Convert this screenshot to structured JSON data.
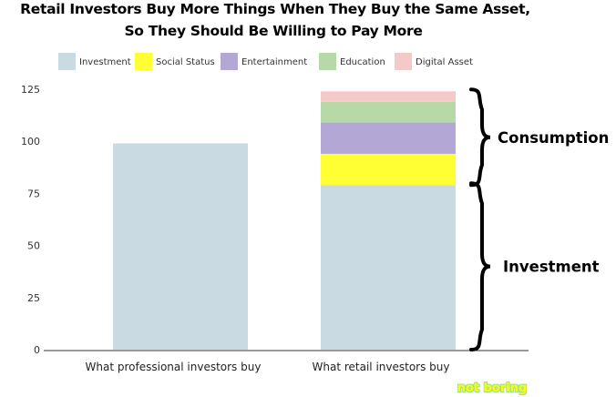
{
  "chart_data": {
    "type": "bar",
    "stacked": true,
    "title": "Retail Investors Buy More Things When They Buy the Same Asset,",
    "subtitle": "So They Should Be Willing to Pay More",
    "categories": [
      "What professional investors buy",
      "What retail investors buy"
    ],
    "series": [
      {
        "name": "Investment",
        "color": "#c9dae2",
        "values": [
          99,
          79
        ]
      },
      {
        "name": "Social Status",
        "color": "#ffff33",
        "values": [
          0,
          15
        ]
      },
      {
        "name": "Entertainment",
        "color": "#b3a7d6",
        "values": [
          0,
          15
        ]
      },
      {
        "name": "Education",
        "color": "#b7d9a8",
        "values": [
          0,
          10
        ]
      },
      {
        "name": "Digital Asset",
        "color": "#f6c9c9",
        "values": [
          0,
          5
        ]
      }
    ],
    "ylim": [
      0,
      125
    ],
    "yticks": [
      0,
      25,
      50,
      75,
      100,
      125
    ],
    "legend_position": "top",
    "grid": false,
    "annotations": [
      {
        "text": "Consumption",
        "applies_to": "What retail investors buy",
        "range": [
          79,
          124
        ]
      },
      {
        "text": "Investment",
        "applies_to": "What retail investors buy",
        "range": [
          0,
          79
        ]
      }
    ]
  },
  "watermark": "not boring"
}
